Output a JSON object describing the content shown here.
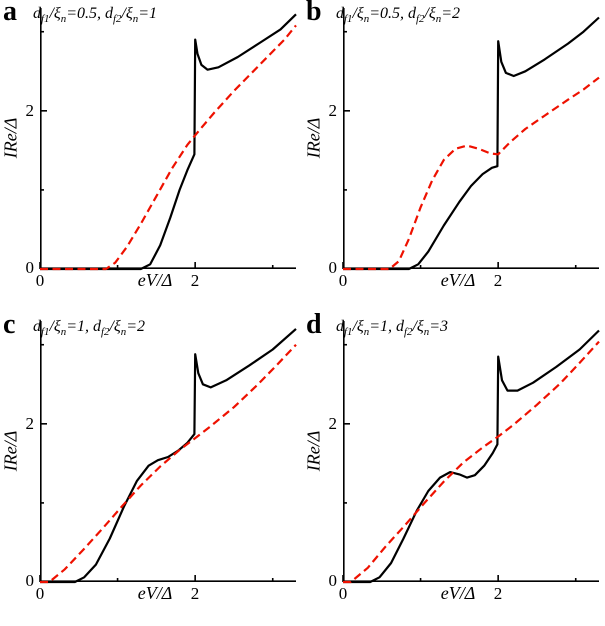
{
  "figure": {
    "background": "#ffffff",
    "curve_colors": {
      "solid": "#000000",
      "dashed": "#ee1100"
    }
  },
  "axes": {
    "xlabel": "eV/Δ",
    "ylabel": "IRe/Δ",
    "xlim": [
      0,
      3.3
    ],
    "ylim": [
      0,
      3.3
    ],
    "xticks_major": [
      0,
      2
    ],
    "xticks_minor": [
      1,
      3
    ],
    "yticks_major": [
      0,
      2
    ],
    "yticks_minor": [
      1,
      3
    ],
    "tick_label_0": "0",
    "tick_label_2": "2"
  },
  "panels": [
    {
      "letter": "a",
      "params": "d_{f1}/ξ_{n}=0.5, d_{f2}/ξ_{n}=1"
    },
    {
      "letter": "b",
      "params": "d_{f1}/ξ_{n}=0.5, d_{f2}/ξ_{n}=2"
    },
    {
      "letter": "c",
      "params": "d_{f1}/ξ_{n}=1, d_{f2}/ξ_{n}=2"
    },
    {
      "letter": "d",
      "params": "d_{f1}/ξ_{n}=1, d_{f2}/ξ_{n}=3"
    }
  ],
  "chart_data": [
    {
      "type": "line",
      "panel": "a",
      "title": "d_f1/ξ_n=0.5, d_f2/ξ_n=1",
      "xlabel": "eV/Δ",
      "ylabel": "IRe/Δ",
      "xlim": [
        0,
        3.3
      ],
      "ylim": [
        0,
        3.3
      ],
      "grid": false,
      "legend": null,
      "series": [
        {
          "name": "black-solid",
          "style": "solid",
          "color": "#000000",
          "points": [
            [
              0,
              0
            ],
            [
              1.3,
              0
            ],
            [
              1.42,
              0.06
            ],
            [
              1.55,
              0.3
            ],
            [
              1.68,
              0.65
            ],
            [
              1.8,
              1.0
            ],
            [
              1.9,
              1.25
            ],
            [
              1.99,
              1.45
            ],
            [
              2.0,
              2.9
            ],
            [
              2.03,
              2.72
            ],
            [
              2.08,
              2.58
            ],
            [
              2.16,
              2.52
            ],
            [
              2.3,
              2.55
            ],
            [
              2.55,
              2.68
            ],
            [
              2.85,
              2.87
            ],
            [
              3.1,
              3.03
            ],
            [
              3.3,
              3.22
            ]
          ]
        },
        {
          "name": "red-dashed",
          "style": "dashed",
          "color": "#ee1100",
          "points": [
            [
              0,
              0
            ],
            [
              0.85,
              0
            ],
            [
              0.97,
              0.08
            ],
            [
              1.12,
              0.28
            ],
            [
              1.3,
              0.57
            ],
            [
              1.5,
              0.92
            ],
            [
              1.7,
              1.27
            ],
            [
              1.9,
              1.57
            ],
            [
              2.05,
              1.75
            ],
            [
              2.25,
              1.98
            ],
            [
              2.5,
              2.25
            ],
            [
              2.75,
              2.5
            ],
            [
              3.0,
              2.75
            ],
            [
              3.15,
              2.9
            ],
            [
              3.3,
              3.08
            ]
          ]
        }
      ]
    },
    {
      "type": "line",
      "panel": "b",
      "title": "d_f1/ξ_n=0.5, d_f2/ξ_n=2",
      "xlabel": "eV/Δ",
      "ylabel": "IRe/Δ",
      "xlim": [
        0,
        3.3
      ],
      "ylim": [
        0,
        3.3
      ],
      "grid": false,
      "legend": null,
      "series": [
        {
          "name": "black-solid",
          "style": "solid",
          "color": "#000000",
          "points": [
            [
              0,
              0
            ],
            [
              0.85,
              0
            ],
            [
              0.97,
              0.06
            ],
            [
              1.1,
              0.22
            ],
            [
              1.3,
              0.55
            ],
            [
              1.5,
              0.85
            ],
            [
              1.65,
              1.05
            ],
            [
              1.8,
              1.2
            ],
            [
              1.92,
              1.28
            ],
            [
              1.99,
              1.3
            ],
            [
              2.0,
              2.88
            ],
            [
              2.04,
              2.62
            ],
            [
              2.1,
              2.48
            ],
            [
              2.2,
              2.44
            ],
            [
              2.35,
              2.5
            ],
            [
              2.6,
              2.65
            ],
            [
              2.9,
              2.85
            ],
            [
              3.1,
              3.0
            ],
            [
              3.3,
              3.18
            ]
          ]
        },
        {
          "name": "red-dashed",
          "style": "dashed",
          "color": "#ee1100",
          "points": [
            [
              0,
              0
            ],
            [
              0.6,
              0
            ],
            [
              0.72,
              0.1
            ],
            [
              0.85,
              0.38
            ],
            [
              1.0,
              0.78
            ],
            [
              1.15,
              1.12
            ],
            [
              1.3,
              1.38
            ],
            [
              1.45,
              1.52
            ],
            [
              1.6,
              1.56
            ],
            [
              1.75,
              1.52
            ],
            [
              1.9,
              1.46
            ],
            [
              2.0,
              1.45
            ],
            [
              2.15,
              1.6
            ],
            [
              2.35,
              1.77
            ],
            [
              2.6,
              1.94
            ],
            [
              2.9,
              2.14
            ],
            [
              3.1,
              2.27
            ],
            [
              3.3,
              2.42
            ]
          ]
        }
      ]
    },
    {
      "type": "line",
      "panel": "c",
      "title": "d_f1/ξ_n=1, d_f2/ξ_n=2",
      "xlabel": "eV/Δ",
      "ylabel": "IRe/Δ",
      "xlim": [
        0,
        3.3
      ],
      "ylim": [
        0,
        3.3
      ],
      "grid": false,
      "legend": null,
      "series": [
        {
          "name": "black-solid",
          "style": "solid",
          "color": "#000000",
          "points": [
            [
              0,
              0
            ],
            [
              0.45,
              0
            ],
            [
              0.57,
              0.06
            ],
            [
              0.72,
              0.22
            ],
            [
              0.9,
              0.55
            ],
            [
              1.08,
              0.95
            ],
            [
              1.25,
              1.28
            ],
            [
              1.4,
              1.47
            ],
            [
              1.52,
              1.54
            ],
            [
              1.65,
              1.58
            ],
            [
              1.78,
              1.66
            ],
            [
              1.9,
              1.76
            ],
            [
              1.99,
              1.87
            ],
            [
              2.0,
              2.88
            ],
            [
              2.04,
              2.64
            ],
            [
              2.1,
              2.5
            ],
            [
              2.2,
              2.46
            ],
            [
              2.4,
              2.55
            ],
            [
              2.7,
              2.74
            ],
            [
              3.0,
              2.94
            ],
            [
              3.3,
              3.2
            ]
          ]
        },
        {
          "name": "red-dashed",
          "style": "dashed",
          "color": "#ee1100",
          "points": [
            [
              0,
              0
            ],
            [
              0.12,
              0
            ],
            [
              0.32,
              0.16
            ],
            [
              0.55,
              0.4
            ],
            [
              0.8,
              0.67
            ],
            [
              1.05,
              0.95
            ],
            [
              1.3,
              1.22
            ],
            [
              1.55,
              1.46
            ],
            [
              1.8,
              1.67
            ],
            [
              2.0,
              1.82
            ],
            [
              2.2,
              1.97
            ],
            [
              2.5,
              2.21
            ],
            [
              2.8,
              2.49
            ],
            [
              3.05,
              2.74
            ],
            [
              3.3,
              3.0
            ]
          ]
        }
      ]
    },
    {
      "type": "line",
      "panel": "d",
      "title": "d_f1/ξ_n=1, d_f2/ξ_n=3",
      "xlabel": "eV/Δ",
      "ylabel": "IRe/Δ",
      "xlim": [
        0,
        3.3
      ],
      "ylim": [
        0,
        3.3
      ],
      "grid": false,
      "legend": null,
      "series": [
        {
          "name": "black-solid",
          "style": "solid",
          "color": "#000000",
          "points": [
            [
              0,
              0
            ],
            [
              0.35,
              0
            ],
            [
              0.47,
              0.06
            ],
            [
              0.62,
              0.24
            ],
            [
              0.78,
              0.55
            ],
            [
              0.95,
              0.9
            ],
            [
              1.1,
              1.15
            ],
            [
              1.25,
              1.32
            ],
            [
              1.38,
              1.39
            ],
            [
              1.5,
              1.36
            ],
            [
              1.6,
              1.32
            ],
            [
              1.7,
              1.35
            ],
            [
              1.82,
              1.47
            ],
            [
              1.93,
              1.63
            ],
            [
              1.99,
              1.74
            ],
            [
              2.0,
              2.85
            ],
            [
              2.05,
              2.55
            ],
            [
              2.12,
              2.42
            ],
            [
              2.25,
              2.42
            ],
            [
              2.45,
              2.52
            ],
            [
              2.75,
              2.72
            ],
            [
              3.05,
              2.94
            ],
            [
              3.3,
              3.18
            ]
          ]
        },
        {
          "name": "red-dashed",
          "style": "dashed",
          "color": "#ee1100",
          "points": [
            [
              0,
              0
            ],
            [
              0.1,
              0
            ],
            [
              0.32,
              0.18
            ],
            [
              0.55,
              0.45
            ],
            [
              0.8,
              0.72
            ],
            [
              1.05,
              1.0
            ],
            [
              1.3,
              1.27
            ],
            [
              1.55,
              1.51
            ],
            [
              1.8,
              1.7
            ],
            [
              2.0,
              1.84
            ],
            [
              2.2,
              1.99
            ],
            [
              2.5,
              2.24
            ],
            [
              2.8,
              2.51
            ],
            [
              3.05,
              2.77
            ],
            [
              3.3,
              3.04
            ]
          ]
        }
      ]
    }
  ]
}
